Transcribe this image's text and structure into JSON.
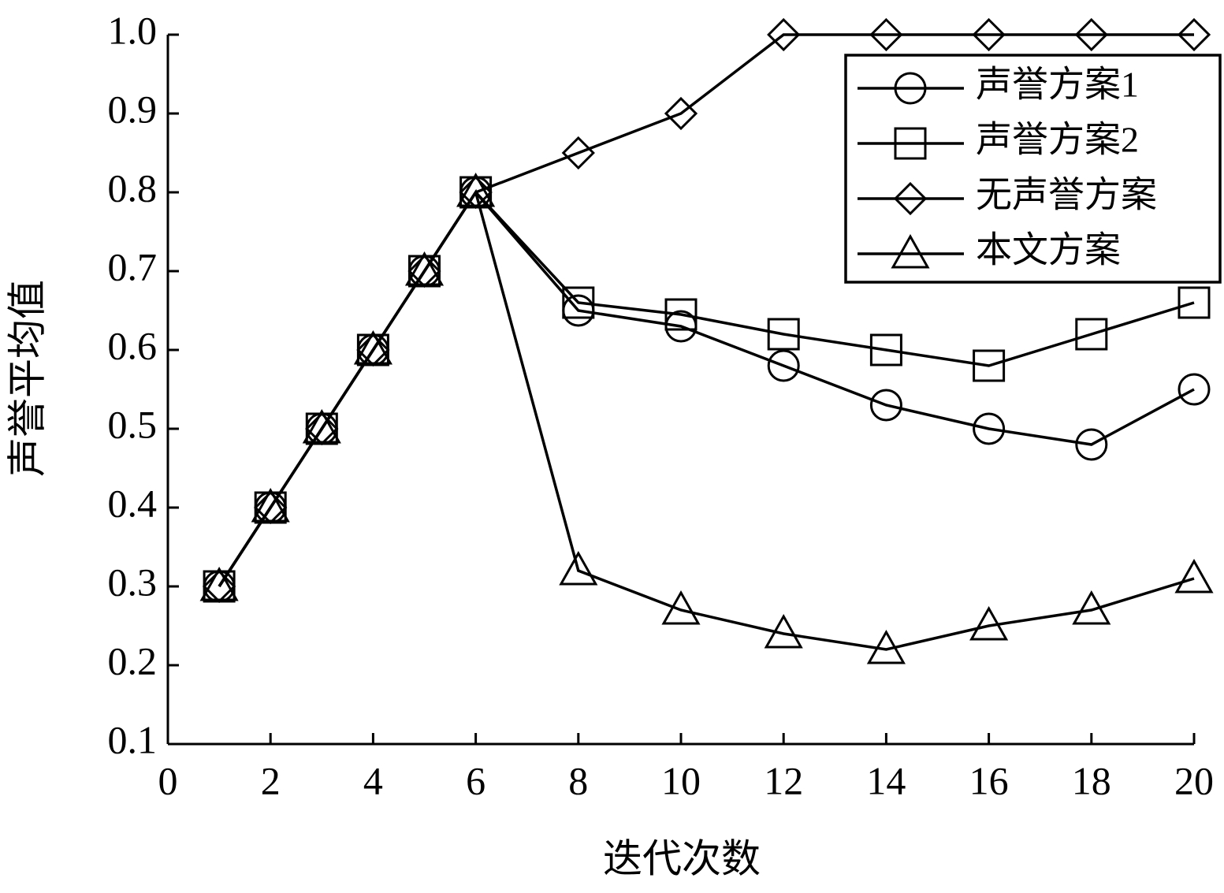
{
  "chart_data": {
    "type": "line",
    "xlabel": "迭代次数",
    "ylabel": "声誉平均值",
    "x": [
      1,
      2,
      3,
      4,
      5,
      6,
      8,
      10,
      12,
      14,
      16,
      18,
      20
    ],
    "series": [
      {
        "name": "声誉方案1",
        "color": "#000000",
        "marker": "circle",
        "values": [
          0.3,
          0.4,
          0.5,
          0.6,
          0.7,
          0.8,
          0.65,
          0.63,
          0.58,
          0.53,
          0.5,
          0.48,
          0.55
        ]
      },
      {
        "name": "声誉方案2",
        "color": "#000000",
        "marker": "square",
        "values": [
          0.3,
          0.4,
          0.5,
          0.6,
          0.7,
          0.8,
          0.66,
          0.645,
          0.62,
          0.6,
          0.58,
          0.62,
          0.66
        ]
      },
      {
        "name": "无声誉方案",
        "color": "#000000",
        "marker": "diamond",
        "values": [
          0.3,
          0.4,
          0.5,
          0.6,
          0.7,
          0.8,
          0.85,
          0.9,
          1.0,
          1.0,
          1.0,
          1.0,
          1.0
        ]
      },
      {
        "name": "本文方案",
        "color": "#000000",
        "marker": "triangle",
        "values": [
          0.3,
          0.4,
          0.5,
          0.6,
          0.7,
          0.8,
          0.32,
          0.27,
          0.24,
          0.22,
          0.25,
          0.27,
          0.31
        ]
      }
    ],
    "xlim": [
      0,
      20
    ],
    "xticks": [
      0,
      2,
      4,
      6,
      8,
      10,
      12,
      14,
      16,
      18,
      20
    ],
    "ylim": [
      0.1,
      1.0
    ],
    "yticks": [
      0.1,
      0.2,
      0.3,
      0.4,
      0.5,
      0.6,
      0.7,
      0.8,
      0.9,
      {
        "value": 1,
        "label": "1.0"
      }
    ],
    "legend": "upper right",
    "grid": false
  }
}
